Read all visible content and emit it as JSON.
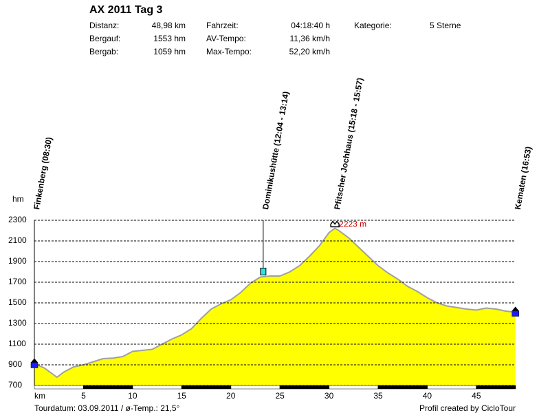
{
  "chart_data": {
    "type": "area",
    "title": "AX 2011 Tag 3",
    "stats": [
      [
        "Distanz:",
        "48,98 km",
        "Fahrzeit:",
        "04:18:40 h",
        "Kategorie:",
        "5 Sterne"
      ],
      [
        "Bergauf:",
        "1553 hm",
        "AV-Tempo:",
        "11,36 km/h"
      ],
      [
        "Bergab:",
        "1059 hm",
        "Max-Tempo:",
        "52,20 km/h"
      ]
    ],
    "y_label": "hm",
    "x_label": "km",
    "footer_left": "Tourdatum: 03.09.2011  /  ø-Temp.: 21,5°",
    "footer_right": "Profil created by CicloTour",
    "x": [
      0,
      1,
      2.3,
      3,
      4,
      5,
      6,
      7,
      8,
      9,
      10,
      11,
      12,
      13,
      14,
      15,
      16,
      17,
      18,
      19,
      20,
      21,
      22,
      23,
      24,
      25,
      26,
      27,
      28,
      29,
      30,
      30.6,
      31,
      32,
      33,
      34,
      35,
      36,
      37,
      38,
      39,
      40,
      41,
      42,
      43,
      44,
      45,
      46,
      47,
      48,
      48.98
    ],
    "values": [
      910,
      870,
      780,
      830,
      880,
      900,
      930,
      960,
      965,
      980,
      1030,
      1040,
      1050,
      1100,
      1150,
      1190,
      1250,
      1350,
      1440,
      1490,
      1530,
      1600,
      1690,
      1750,
      1760,
      1760,
      1800,
      1860,
      1950,
      2050,
      2180,
      2223,
      2200,
      2130,
      2040,
      1950,
      1860,
      1790,
      1730,
      1660,
      1610,
      1550,
      1500,
      1470,
      1455,
      1440,
      1430,
      1450,
      1440,
      1420,
      1410
    ],
    "color": "#ffff00",
    "line_color": "#a0a0a0",
    "xlim": [
      0,
      49
    ],
    "ylim": [
      700,
      2300
    ],
    "xticks": [
      5,
      10,
      15,
      20,
      25,
      30,
      35,
      40,
      45
    ],
    "yticks": [
      700,
      900,
      1100,
      1300,
      1500,
      1700,
      1900,
      2100,
      2300
    ],
    "grid": true,
    "waypoints": [
      {
        "label": "Finkenberg (08:30)",
        "x": 0,
        "elevation": 910
      },
      {
        "label": "Dominikushütte (12:04 - 13:14)",
        "x": 23.3,
        "elevation": 1810
      },
      {
        "label": "Pfitscher Jochhaus (15:18 - 15:57)",
        "x": 30.6,
        "elevation": 2223,
        "value_label": "2223 m"
      },
      {
        "label": "Kematen (16:53)",
        "x": 48.98,
        "elevation": 1410
      }
    ]
  }
}
